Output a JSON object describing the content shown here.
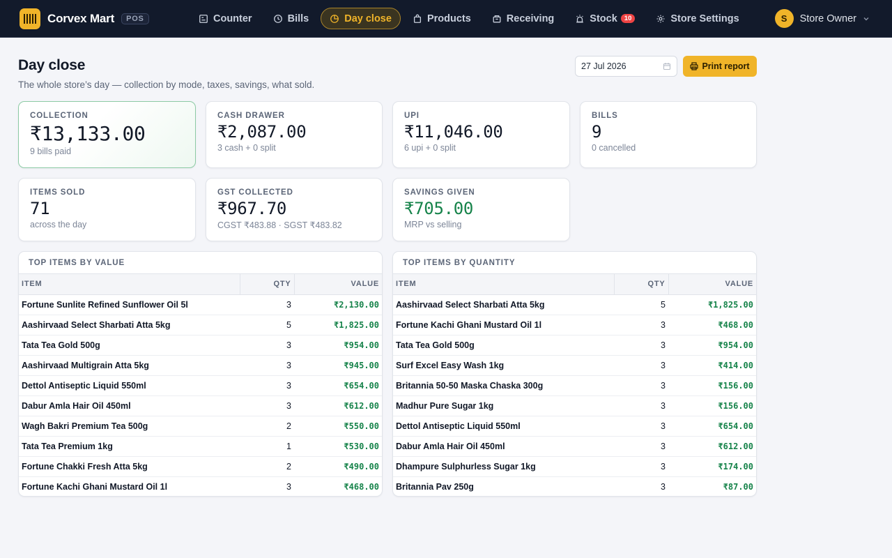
{
  "brand": {
    "name": "Corvex Mart",
    "badge": "POS"
  },
  "nav": [
    {
      "key": "counter",
      "label": "Counter",
      "icon": "counter-icon"
    },
    {
      "key": "bills",
      "label": "Bills",
      "icon": "clock-icon"
    },
    {
      "key": "day-close",
      "label": "Day close",
      "icon": "pie-icon",
      "active": true
    },
    {
      "key": "products",
      "label": "Products",
      "icon": "bag-icon"
    },
    {
      "key": "receiving",
      "label": "Receiving",
      "icon": "box-icon"
    },
    {
      "key": "stock",
      "label": "Stock",
      "icon": "alarm-icon",
      "badge": "10"
    },
    {
      "key": "store-settings",
      "label": "Store Settings",
      "icon": "gear-icon"
    }
  ],
  "user": {
    "initial": "S",
    "name": "Store Owner"
  },
  "page": {
    "title": "Day close",
    "subtitle": "The whole store’s day — collection by mode, taxes, savings, what sold.",
    "date": "27 Jul 2026",
    "print_label": "Print report"
  },
  "stats": {
    "collection": {
      "label": "Collection",
      "value": "₹13,133.00",
      "sub": "9 bills paid"
    },
    "cash": {
      "label": "Cash drawer",
      "value": "₹2,087.00",
      "sub": "3 cash + 0 split"
    },
    "upi": {
      "label": "UPI",
      "value": "₹11,046.00",
      "sub": "6 upi + 0 split"
    },
    "bills": {
      "label": "Bills",
      "value": "9",
      "sub": "0 cancelled"
    },
    "items": {
      "label": "Items sold",
      "value": "71",
      "sub": "across the day"
    },
    "gst": {
      "label": "GST collected",
      "value": "₹967.70",
      "sub": "CGST ₹483.88 · SGST ₹483.82"
    },
    "savings": {
      "label": "Savings given",
      "value": "₹705.00",
      "sub": "MRP vs selling"
    }
  },
  "colors": {
    "accent": "#f0b429",
    "positive": "#16834a",
    "topbar": "#121a2b"
  },
  "top_by_value": {
    "title": "TOP ITEMS BY VALUE",
    "headers": {
      "item": "ITEM",
      "qty": "QTY",
      "value": "VALUE"
    },
    "rows": [
      {
        "item": "Fortune Sunlite Refined Sunflower Oil 5l",
        "qty": "3",
        "value": "₹2,130.00"
      },
      {
        "item": "Aashirvaad Select Sharbati Atta 5kg",
        "qty": "5",
        "value": "₹1,825.00"
      },
      {
        "item": "Tata Tea Gold 500g",
        "qty": "3",
        "value": "₹954.00"
      },
      {
        "item": "Aashirvaad Multigrain Atta 5kg",
        "qty": "3",
        "value": "₹945.00"
      },
      {
        "item": "Dettol Antiseptic Liquid 550ml",
        "qty": "3",
        "value": "₹654.00"
      },
      {
        "item": "Dabur Amla Hair Oil 450ml",
        "qty": "3",
        "value": "₹612.00"
      },
      {
        "item": "Wagh Bakri Premium Tea 500g",
        "qty": "2",
        "value": "₹550.00"
      },
      {
        "item": "Tata Tea Premium 1kg",
        "qty": "1",
        "value": "₹530.00"
      },
      {
        "item": "Fortune Chakki Fresh Atta 5kg",
        "qty": "2",
        "value": "₹490.00"
      },
      {
        "item": "Fortune Kachi Ghani Mustard Oil 1l",
        "qty": "3",
        "value": "₹468.00"
      }
    ]
  },
  "top_by_qty": {
    "title": "TOP ITEMS BY QUANTITY",
    "headers": {
      "item": "ITEM",
      "qty": "QTY",
      "value": "VALUE"
    },
    "rows": [
      {
        "item": "Aashirvaad Select Sharbati Atta 5kg",
        "qty": "5",
        "value": "₹1,825.00"
      },
      {
        "item": "Fortune Kachi Ghani Mustard Oil 1l",
        "qty": "3",
        "value": "₹468.00"
      },
      {
        "item": "Tata Tea Gold 500g",
        "qty": "3",
        "value": "₹954.00"
      },
      {
        "item": "Surf Excel Easy Wash 1kg",
        "qty": "3",
        "value": "₹414.00"
      },
      {
        "item": "Britannia 50-50 Maska Chaska 300g",
        "qty": "3",
        "value": "₹156.00"
      },
      {
        "item": "Madhur Pure Sugar 1kg",
        "qty": "3",
        "value": "₹156.00"
      },
      {
        "item": "Dettol Antiseptic Liquid 550ml",
        "qty": "3",
        "value": "₹654.00"
      },
      {
        "item": "Dabur Amla Hair Oil 450ml",
        "qty": "3",
        "value": "₹612.00"
      },
      {
        "item": "Dhampure Sulphurless Sugar 1kg",
        "qty": "3",
        "value": "₹174.00"
      },
      {
        "item": "Britannia Pav 250g",
        "qty": "3",
        "value": "₹87.00"
      }
    ]
  }
}
